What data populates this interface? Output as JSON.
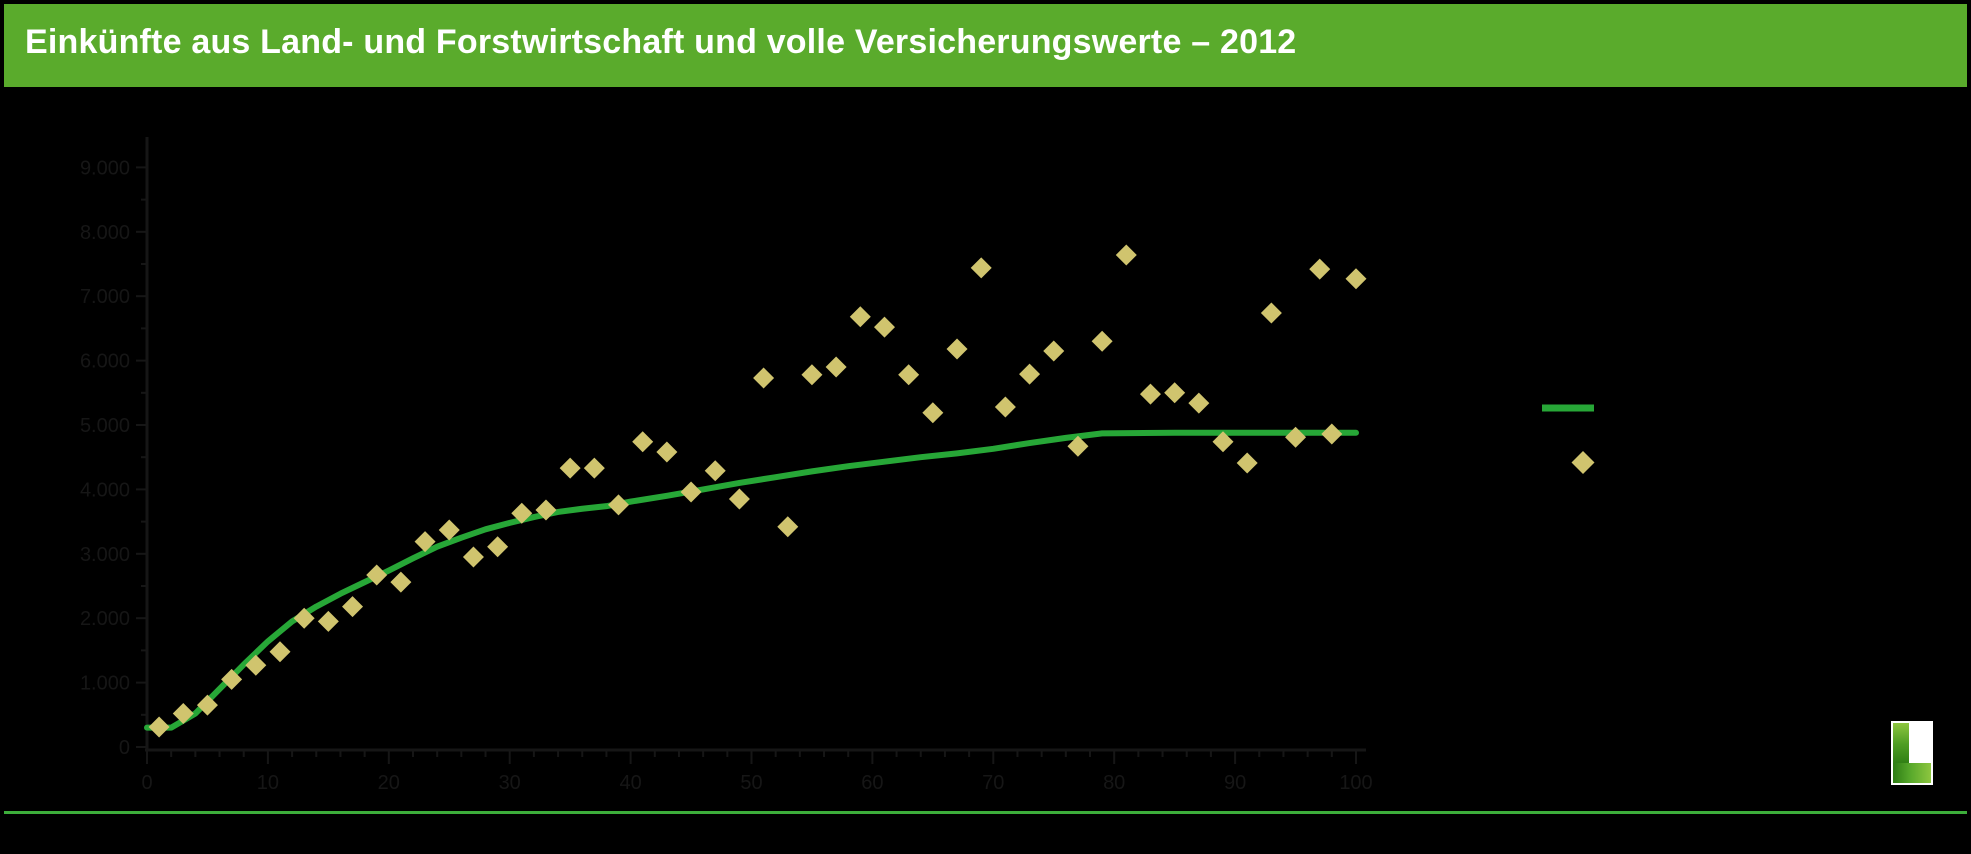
{
  "header": {
    "title": "Einkünfte aus Land- und Forstwirtschaft und volle Versicherungswerte – 2012"
  },
  "colors": {
    "background": "#000000",
    "header_green": "#5AAB2C",
    "title_text": "#FFFFFF",
    "trend_line_green": "#27A737",
    "diamond_fill": "#D0C46E",
    "axis_dark": "#161616",
    "bottom_rule_green": "#3DAE3B"
  },
  "chart_data": {
    "type": "scatter",
    "title": "Einkünfte aus Land- und Forstwirtschaft und volle Versicherungswerte – 2012",
    "xlabel": "",
    "ylabel": "",
    "xlim": [
      0,
      100
    ],
    "ylim": [
      0,
      9000
    ],
    "grid": false,
    "legend_position": "right",
    "x_ticks": [
      {
        "value": 0,
        "label": "0"
      },
      {
        "value": 10,
        "label": "10"
      },
      {
        "value": 20,
        "label": "20"
      },
      {
        "value": 30,
        "label": "30"
      },
      {
        "value": 40,
        "label": "40"
      },
      {
        "value": 50,
        "label": "50"
      },
      {
        "value": 60,
        "label": "60"
      },
      {
        "value": 70,
        "label": "70"
      },
      {
        "value": 80,
        "label": "80"
      },
      {
        "value": 90,
        "label": "90"
      },
      {
        "value": 100,
        "label": "100"
      }
    ],
    "x_minor_tick_step": 2,
    "y_ticks": [
      {
        "value": 0,
        "label": "0"
      },
      {
        "value": 1000,
        "label": "1.000"
      },
      {
        "value": 2000,
        "label": "2.000"
      },
      {
        "value": 3000,
        "label": "3.000"
      },
      {
        "value": 4000,
        "label": "4.000"
      },
      {
        "value": 5000,
        "label": "5.000"
      },
      {
        "value": 6000,
        "label": "6.000"
      },
      {
        "value": 7000,
        "label": "7.000"
      },
      {
        "value": 8000,
        "label": "8.000"
      },
      {
        "value": 9000,
        "label": "9.000"
      }
    ],
    "y_minor_tick_step": 500,
    "series": [
      {
        "name": "diamond-scatter",
        "type": "scatter",
        "marker": "diamond",
        "points": [
          [
            1,
            310
          ],
          [
            3,
            520
          ],
          [
            5,
            650
          ],
          [
            7,
            1050
          ],
          [
            9,
            1270
          ],
          [
            11,
            1480
          ],
          [
            13,
            2000
          ],
          [
            15,
            1950
          ],
          [
            17,
            2180
          ],
          [
            19,
            2670
          ],
          [
            21,
            2560
          ],
          [
            23,
            3190
          ],
          [
            25,
            3370
          ],
          [
            27,
            2950
          ],
          [
            29,
            3110
          ],
          [
            31,
            3630
          ],
          [
            33,
            3680
          ],
          [
            35,
            4330
          ],
          [
            37,
            4330
          ],
          [
            39,
            3760
          ],
          [
            41,
            4740
          ],
          [
            43,
            4580
          ],
          [
            45,
            3960
          ],
          [
            47,
            4290
          ],
          [
            49,
            3850
          ],
          [
            51,
            5730
          ],
          [
            53,
            3420
          ],
          [
            55,
            5780
          ],
          [
            57,
            5900
          ],
          [
            59,
            6680
          ],
          [
            61,
            6520
          ],
          [
            63,
            5780
          ],
          [
            65,
            5190
          ],
          [
            67,
            6180
          ],
          [
            69,
            7440
          ],
          [
            71,
            5280
          ],
          [
            73,
            5790
          ],
          [
            75,
            6150
          ],
          [
            77,
            4670
          ],
          [
            79,
            6300
          ],
          [
            81,
            7640
          ],
          [
            83,
            5480
          ],
          [
            85,
            5500
          ],
          [
            87,
            5340
          ],
          [
            89,
            4740
          ],
          [
            91,
            4410
          ],
          [
            93,
            6740
          ],
          [
            95,
            4810
          ],
          [
            97,
            7420
          ],
          [
            98,
            4860
          ],
          [
            100,
            7270
          ]
        ]
      },
      {
        "name": "trend-line",
        "type": "line",
        "points": [
          [
            0,
            300
          ],
          [
            2,
            300
          ],
          [
            4,
            520
          ],
          [
            6,
            900
          ],
          [
            8,
            1280
          ],
          [
            10,
            1640
          ],
          [
            12,
            1950
          ],
          [
            14,
            2180
          ],
          [
            16,
            2380
          ],
          [
            18,
            2560
          ],
          [
            20,
            2740
          ],
          [
            22,
            2930
          ],
          [
            24,
            3110
          ],
          [
            26,
            3250
          ],
          [
            28,
            3380
          ],
          [
            30,
            3480
          ],
          [
            32,
            3570
          ],
          [
            34,
            3650
          ],
          [
            36,
            3700
          ],
          [
            38,
            3740
          ],
          [
            40,
            3810
          ],
          [
            43,
            3900
          ],
          [
            46,
            4000
          ],
          [
            49,
            4100
          ],
          [
            52,
            4190
          ],
          [
            55,
            4280
          ],
          [
            58,
            4360
          ],
          [
            61,
            4430
          ],
          [
            64,
            4500
          ],
          [
            67,
            4560
          ],
          [
            70,
            4630
          ],
          [
            73,
            4720
          ],
          [
            76,
            4800
          ],
          [
            79,
            4870
          ],
          [
            85,
            4880
          ],
          [
            92,
            4880
          ],
          [
            100,
            4880
          ]
        ]
      }
    ],
    "legend": {
      "entries": [
        {
          "marker": "line",
          "series": "trend-line",
          "label": ""
        },
        {
          "marker": "diamond",
          "series": "diamond-scatter",
          "label": ""
        }
      ]
    }
  }
}
